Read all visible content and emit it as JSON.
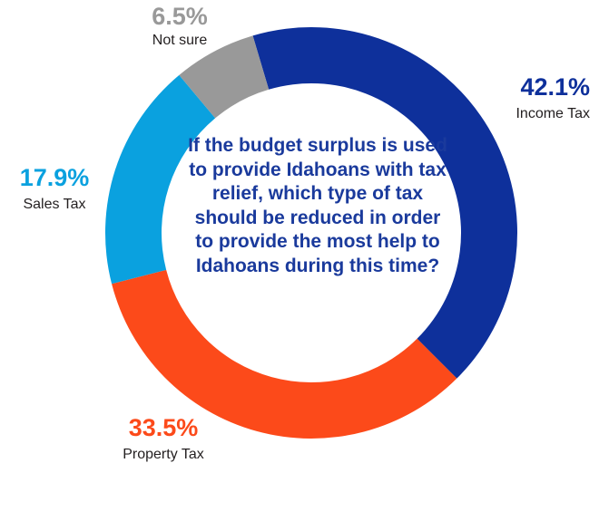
{
  "question": "If the budget surplus is used to provide Idahoans with tax relief, which type of tax should be reduced in order to provide the most help to Idahoans during this time?",
  "chart_data": {
    "type": "pie",
    "donut": true,
    "title": "",
    "slices": [
      {
        "name": "Income Tax",
        "value": 42.1,
        "label": "42.1%",
        "color": "#0e309b"
      },
      {
        "name": "Property Tax",
        "value": 33.5,
        "label": "33.5%",
        "color": "#fc4a1a"
      },
      {
        "name": "Sales Tax",
        "value": 17.9,
        "label": "17.9%",
        "color": "#0aa1df"
      },
      {
        "name": "Not sure",
        "value": 6.5,
        "label": "6.5%",
        "color": "#999999"
      }
    ]
  }
}
